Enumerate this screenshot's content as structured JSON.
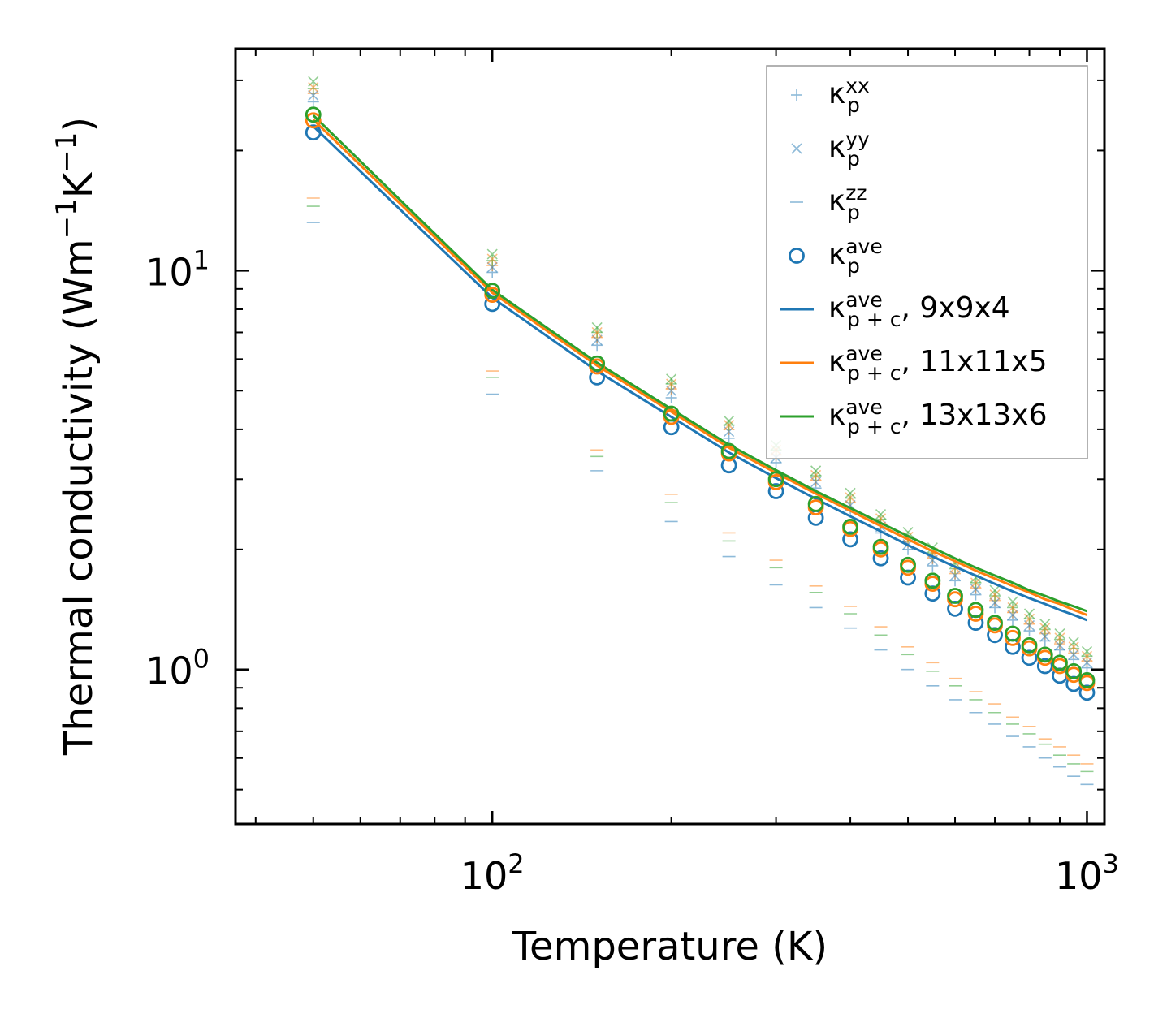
{
  "chart_data": {
    "type": "scatter",
    "title": "",
    "xlabel": "Temperature (K)",
    "ylabel": "Thermal conductivity (Wm",
    "ylabel_sup1": "−1",
    "ylabel_mid": "K",
    "ylabel_sup2": "−1",
    "ylabel_end": ")",
    "xscale": "log",
    "yscale": "log",
    "xlim": [
      37,
      1070
    ],
    "ylim": [
      0.41,
      36
    ],
    "x_ticks": [
      {
        "value": 100,
        "base": "10",
        "exp": "2"
      },
      {
        "value": 1000,
        "base": "10",
        "exp": "3"
      }
    ],
    "y_ticks": [
      {
        "value": 1,
        "base": "10",
        "exp": "0"
      },
      {
        "value": 10,
        "base": "10",
        "exp": "1"
      }
    ],
    "x": [
      50,
      100,
      150,
      200,
      250,
      300,
      350,
      400,
      450,
      500,
      550,
      600,
      650,
      700,
      750,
      800,
      850,
      900,
      950,
      1000
    ],
    "series": [
      {
        "name": "kp_xx_9x9x4",
        "group": "xx",
        "marker": "+",
        "color": "#1f77b4",
        "values": [
          26.5,
          9.9,
          6.5,
          4.8,
          3.8,
          3.3,
          2.85,
          2.5,
          2.2,
          2.0,
          1.82,
          1.67,
          1.54,
          1.43,
          1.33,
          1.25,
          1.18,
          1.12,
          1.06,
          1.01
        ]
      },
      {
        "name": "kp_xx_11x11x5",
        "group": "xx",
        "marker": "+",
        "color": "#ff7f0e",
        "values": [
          27.8,
          10.3,
          6.8,
          5.05,
          4.0,
          3.45,
          2.98,
          2.62,
          2.32,
          2.09,
          1.9,
          1.74,
          1.6,
          1.49,
          1.39,
          1.3,
          1.23,
          1.16,
          1.1,
          1.05
        ]
      },
      {
        "name": "kp_xx_13x13x6",
        "group": "xx",
        "marker": "+",
        "color": "#2ca02c",
        "values": [
          28.6,
          10.6,
          7.0,
          5.2,
          4.1,
          3.55,
          3.06,
          2.69,
          2.38,
          2.15,
          1.96,
          1.79,
          1.65,
          1.53,
          1.43,
          1.34,
          1.26,
          1.19,
          1.13,
          1.08
        ]
      },
      {
        "name": "kp_yy_9x9x4",
        "group": "yy",
        "marker": "x",
        "color": "#1f77b4",
        "values": [
          27.5,
          10.2,
          6.7,
          5.0,
          3.95,
          3.4,
          2.95,
          2.58,
          2.28,
          2.06,
          1.88,
          1.72,
          1.59,
          1.47,
          1.37,
          1.29,
          1.21,
          1.15,
          1.09,
          1.04
        ]
      },
      {
        "name": "kp_yy_11x11x5",
        "group": "yy",
        "marker": "x",
        "color": "#ff7f0e",
        "values": [
          28.8,
          10.7,
          7.0,
          5.2,
          4.1,
          3.55,
          3.07,
          2.7,
          2.39,
          2.15,
          1.96,
          1.8,
          1.65,
          1.54,
          1.43,
          1.34,
          1.27,
          1.2,
          1.14,
          1.08
        ]
      },
      {
        "name": "kp_yy_13x13x6",
        "group": "yy",
        "marker": "x",
        "color": "#2ca02c",
        "values": [
          29.8,
          11.0,
          7.2,
          5.35,
          4.2,
          3.65,
          3.15,
          2.77,
          2.45,
          2.21,
          2.02,
          1.85,
          1.7,
          1.58,
          1.48,
          1.38,
          1.3,
          1.23,
          1.17,
          1.11
        ]
      },
      {
        "name": "kp_zz_9x9x4",
        "group": "zz",
        "marker": "_",
        "color": "#1f77b4",
        "values": [
          13.2,
          4.9,
          3.15,
          2.35,
          1.92,
          1.63,
          1.43,
          1.27,
          1.12,
          1.0,
          0.91,
          0.84,
          0.78,
          0.73,
          0.68,
          0.64,
          0.6,
          0.57,
          0.54,
          0.515
        ]
      },
      {
        "name": "kp_zz_11x11x5",
        "group": "zz",
        "marker": "_",
        "color": "#ff7f0e",
        "values": [
          15.2,
          5.6,
          3.55,
          2.75,
          2.2,
          1.88,
          1.62,
          1.44,
          1.28,
          1.14,
          1.04,
          0.95,
          0.88,
          0.82,
          0.76,
          0.72,
          0.67,
          0.64,
          0.61,
          0.58
        ]
      },
      {
        "name": "kp_zz_13x13x6",
        "group": "zz",
        "marker": "_",
        "color": "#2ca02c",
        "values": [
          14.5,
          5.4,
          3.42,
          2.62,
          2.1,
          1.8,
          1.56,
          1.38,
          1.22,
          1.09,
          0.99,
          0.91,
          0.84,
          0.78,
          0.73,
          0.69,
          0.65,
          0.61,
          0.58,
          0.555
        ]
      },
      {
        "name": "kp_ave_9x9x4",
        "group": "ave",
        "marker": "o",
        "color": "#1f77b4",
        "values": [
          22.2,
          8.25,
          5.4,
          4.05,
          3.25,
          2.8,
          2.4,
          2.12,
          1.9,
          1.7,
          1.55,
          1.42,
          1.31,
          1.22,
          1.14,
          1.07,
          1.02,
          0.965,
          0.92,
          0.875
        ]
      },
      {
        "name": "kp_ave_11x11x5",
        "group": "ave",
        "marker": "o",
        "color": "#ff7f0e",
        "values": [
          23.8,
          8.7,
          5.75,
          4.3,
          3.48,
          2.95,
          2.55,
          2.25,
          2.0,
          1.8,
          1.64,
          1.5,
          1.38,
          1.29,
          1.2,
          1.13,
          1.07,
          1.02,
          0.97,
          0.925
        ]
      },
      {
        "name": "kp_ave_13x13x6",
        "group": "ave",
        "marker": "o",
        "color": "#2ca02c",
        "values": [
          24.6,
          8.9,
          5.85,
          4.38,
          3.53,
          3.0,
          2.6,
          2.28,
          2.03,
          1.83,
          1.67,
          1.53,
          1.41,
          1.31,
          1.23,
          1.15,
          1.09,
          1.04,
          0.99,
          0.94
        ]
      },
      {
        "name": "kpc_ave_9x9x4",
        "group": "line",
        "marker": "line",
        "color": "#1f77b4",
        "values": [
          23.0,
          8.55,
          5.6,
          4.3,
          3.5,
          3.02,
          2.68,
          2.42,
          2.22,
          2.05,
          1.92,
          1.81,
          1.72,
          1.64,
          1.57,
          1.51,
          1.46,
          1.41,
          1.37,
          1.33
        ]
      },
      {
        "name": "kpc_ave_11x11x5",
        "group": "line",
        "marker": "line",
        "color": "#ff7f0e",
        "values": [
          23.9,
          8.8,
          5.78,
          4.43,
          3.6,
          3.11,
          2.76,
          2.5,
          2.29,
          2.12,
          1.98,
          1.87,
          1.77,
          1.69,
          1.62,
          1.56,
          1.5,
          1.46,
          1.41,
          1.37
        ]
      },
      {
        "name": "kpc_ave_13x13x6",
        "group": "line",
        "marker": "line",
        "color": "#2ca02c",
        "values": [
          24.5,
          8.95,
          5.88,
          4.5,
          3.66,
          3.16,
          2.8,
          2.54,
          2.33,
          2.16,
          2.02,
          1.9,
          1.8,
          1.72,
          1.65,
          1.58,
          1.53,
          1.48,
          1.44,
          1.4
        ]
      }
    ],
    "legend": {
      "placement": "top-right",
      "entries": [
        {
          "marker": "+",
          "color": "#1f77b4",
          "base": "κ",
          "sup": "xx",
          "sub": "p",
          "suffix": ""
        },
        {
          "marker": "x",
          "color": "#1f77b4",
          "base": "κ",
          "sup": "yy",
          "sub": "p",
          "suffix": ""
        },
        {
          "marker": "_",
          "color": "#1f77b4",
          "base": "κ",
          "sup": "zz",
          "sub": "p",
          "suffix": ""
        },
        {
          "marker": "o",
          "color": "#1f77b4",
          "base": "κ",
          "sup": "ave",
          "sub": "p",
          "suffix": ""
        },
        {
          "marker": "line",
          "color": "#1f77b4",
          "base": "κ",
          "sup": "ave",
          "sub": "p + c",
          "suffix": ", 9x9x4"
        },
        {
          "marker": "line",
          "color": "#ff7f0e",
          "base": "κ",
          "sup": "ave",
          "sub": "p + c",
          "suffix": ", 11x11x5"
        },
        {
          "marker": "line",
          "color": "#2ca02c",
          "base": "κ",
          "sup": "ave",
          "sub": "p + c",
          "suffix": ", 13x13x6"
        }
      ]
    }
  }
}
